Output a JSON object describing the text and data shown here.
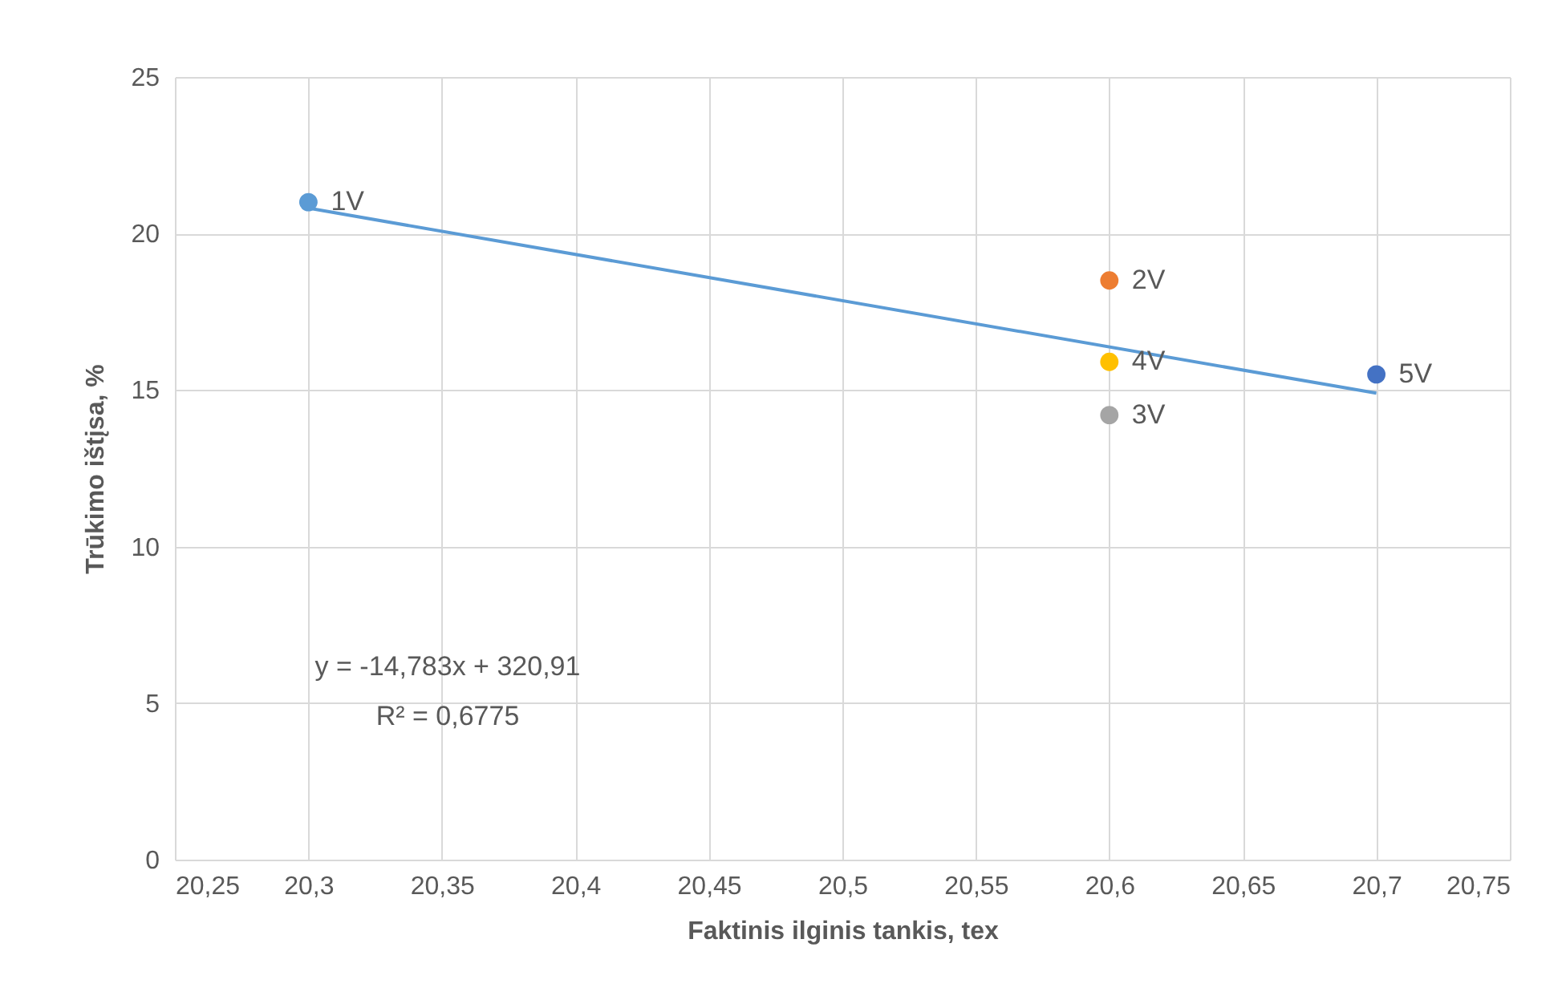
{
  "chart_data": {
    "type": "scatter",
    "xlabel": "Faktinis ilginis tankis, tex",
    "ylabel": "Trūkimo ištįsa, %",
    "xlim": [
      20.25,
      20.75
    ],
    "ylim": [
      0,
      25
    ],
    "xticks": [
      {
        "value": 20.25,
        "label": "20,25"
      },
      {
        "value": 20.3,
        "label": "20,3"
      },
      {
        "value": 20.35,
        "label": "20,35"
      },
      {
        "value": 20.4,
        "label": "20,4"
      },
      {
        "value": 20.45,
        "label": "20,45"
      },
      {
        "value": 20.5,
        "label": "20,5"
      },
      {
        "value": 20.55,
        "label": "20,55"
      },
      {
        "value": 20.6,
        "label": "20,6"
      },
      {
        "value": 20.65,
        "label": "20,65"
      },
      {
        "value": 20.7,
        "label": "20,7"
      },
      {
        "value": 20.75,
        "label": "20,75"
      }
    ],
    "yticks": [
      0,
      5,
      10,
      15,
      20,
      25
    ],
    "grid": true,
    "marker": "circle",
    "series": [
      {
        "name": "1V",
        "color": "#5b9bd5",
        "x": [
          20.3
        ],
        "values": [
          21.0
        ]
      },
      {
        "name": "2V",
        "color": "#ed7d31",
        "x": [
          20.6
        ],
        "values": [
          18.5
        ]
      },
      {
        "name": "3V",
        "color": "#a5a5a5",
        "x": [
          20.6
        ],
        "values": [
          14.2
        ]
      },
      {
        "name": "4V",
        "color": "#ffc000",
        "x": [
          20.6
        ],
        "values": [
          15.9
        ]
      },
      {
        "name": "5V",
        "color": "#4472c4",
        "x": [
          20.7
        ],
        "values": [
          15.5
        ]
      },
      {
        "type": "line",
        "marker": "none",
        "color": "#5b9bd5",
        "x": [
          20.3,
          20.7
        ],
        "values": [
          20.81,
          14.9
        ]
      }
    ],
    "annotations": [
      "y = -14,783x + 320,91",
      "R² = 0,6775"
    ]
  }
}
